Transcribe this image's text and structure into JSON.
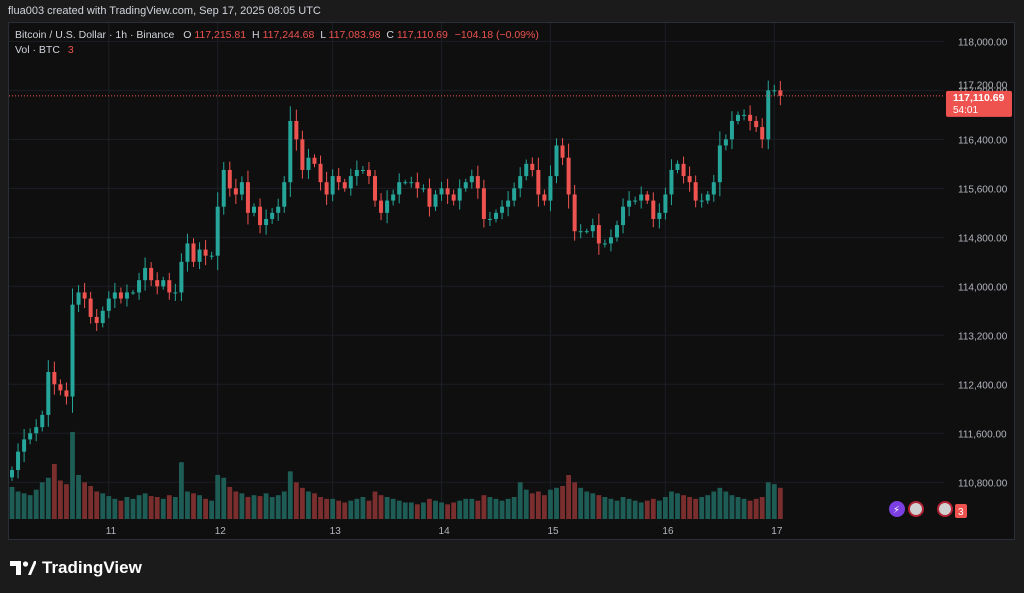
{
  "header": {
    "attribution": "flua003 created with TradingView.com, Sep 17, 2025 08:05 UTC"
  },
  "legend": {
    "symbol": "Bitcoin / U.S. Dollar · 1h · Binance",
    "o_label": "O",
    "o_value": "117,215.81",
    "h_label": "H",
    "h_value": "117,244.68",
    "l_label": "L",
    "l_value": "117,083.98",
    "c_label": "C",
    "c_value": "117,110.69",
    "change": "−104.18 (−0.09%)",
    "vol_label": "Vol · BTC",
    "vol_value": "3"
  },
  "price_tag": {
    "price": "117,110.69",
    "countdown": "54:01",
    "partial_label": "117,200.00"
  },
  "volume_badge": "3",
  "footer": {
    "brand": "TradingView"
  },
  "colors": {
    "up": "#26a69a",
    "down": "#ef5350",
    "background": "#0f0f0f",
    "grid": "#1c1f26",
    "axis_text": "#b2b5be"
  },
  "chart_data": {
    "type": "candlestick",
    "title": "Bitcoin / U.S. Dollar · 1h · Binance",
    "ylim": [
      110200,
      118300
    ],
    "y_ticks": [
      110800,
      111600,
      112400,
      113200,
      114000,
      114800,
      115600,
      116400,
      117200,
      118000
    ],
    "y_tick_labels": [
      "110,800.00",
      "111,600.00",
      "112,400.00",
      "113,200.00",
      "114,000.00",
      "114,800.00",
      "115,600.00",
      "116,400.00",
      "117,200.00",
      "118,000.00"
    ],
    "x_ticks": [
      {
        "label": "11",
        "index": 16
      },
      {
        "label": "12",
        "index": 34
      },
      {
        "label": "13",
        "index": 53
      },
      {
        "label": "14",
        "index": 71
      },
      {
        "label": "15",
        "index": 89
      },
      {
        "label": "16",
        "index": 108
      },
      {
        "label": "17",
        "index": 126
      }
    ],
    "last_price": 117110.69,
    "grid": true,
    "closes": [
      111000,
      111300,
      111500,
      111600,
      111700,
      111900,
      112600,
      112400,
      112300,
      112200,
      113700,
      113900,
      113800,
      113500,
      113400,
      113600,
      113800,
      113900,
      113800,
      113900,
      113900,
      114100,
      114300,
      114100,
      114000,
      114100,
      113900,
      113900,
      114400,
      114700,
      114400,
      114600,
      114500,
      114500,
      115300,
      115900,
      115600,
      115500,
      115700,
      115200,
      115300,
      115000,
      115100,
      115200,
      115300,
      115700,
      116700,
      116400,
      115900,
      116100,
      116000,
      115700,
      115500,
      115800,
      115700,
      115600,
      115800,
      115900,
      115900,
      115800,
      115400,
      115200,
      115400,
      115500,
      115700,
      115700,
      115700,
      115600,
      115600,
      115300,
      115500,
      115600,
      115500,
      115400,
      115600,
      115700,
      115800,
      115600,
      115100,
      115100,
      115200,
      115300,
      115400,
      115600,
      115800,
      116000,
      115900,
      115500,
      115400,
      115800,
      116300,
      116100,
      115500,
      114900,
      114900,
      114900,
      115000,
      114700,
      114700,
      114800,
      115000,
      115300,
      115400,
      115400,
      115500,
      115400,
      115100,
      115200,
      115500,
      115900,
      116000,
      115800,
      115700,
      115400,
      115400,
      115500,
      115700,
      116300,
      116400,
      116700,
      116800,
      116800,
      116700,
      116600,
      116400,
      117200,
      117200,
      117110.69
    ],
    "volumes": [
      35,
      30,
      28,
      26,
      32,
      40,
      45,
      60,
      42,
      38,
      95,
      48,
      40,
      36,
      30,
      28,
      25,
      22,
      20,
      24,
      22,
      26,
      28,
      25,
      24,
      22,
      26,
      24,
      62,
      30,
      28,
      26,
      22,
      20,
      48,
      45,
      35,
      30,
      28,
      24,
      26,
      25,
      28,
      24,
      26,
      30,
      52,
      40,
      34,
      30,
      28,
      24,
      22,
      22,
      20,
      18,
      20,
      22,
      24,
      20,
      30,
      26,
      24,
      22,
      20,
      18,
      18,
      16,
      18,
      22,
      20,
      18,
      16,
      18,
      20,
      22,
      22,
      20,
      26,
      24,
      22,
      20,
      22,
      24,
      40,
      32,
      28,
      30,
      26,
      32,
      34,
      36,
      48,
      40,
      34,
      30,
      28,
      26,
      24,
      22,
      20,
      24,
      22,
      20,
      18,
      20,
      22,
      20,
      24,
      30,
      28,
      26,
      24,
      22,
      24,
      26,
      30,
      34,
      30,
      26,
      24,
      22,
      20,
      22,
      24,
      40,
      38,
      34
    ]
  }
}
